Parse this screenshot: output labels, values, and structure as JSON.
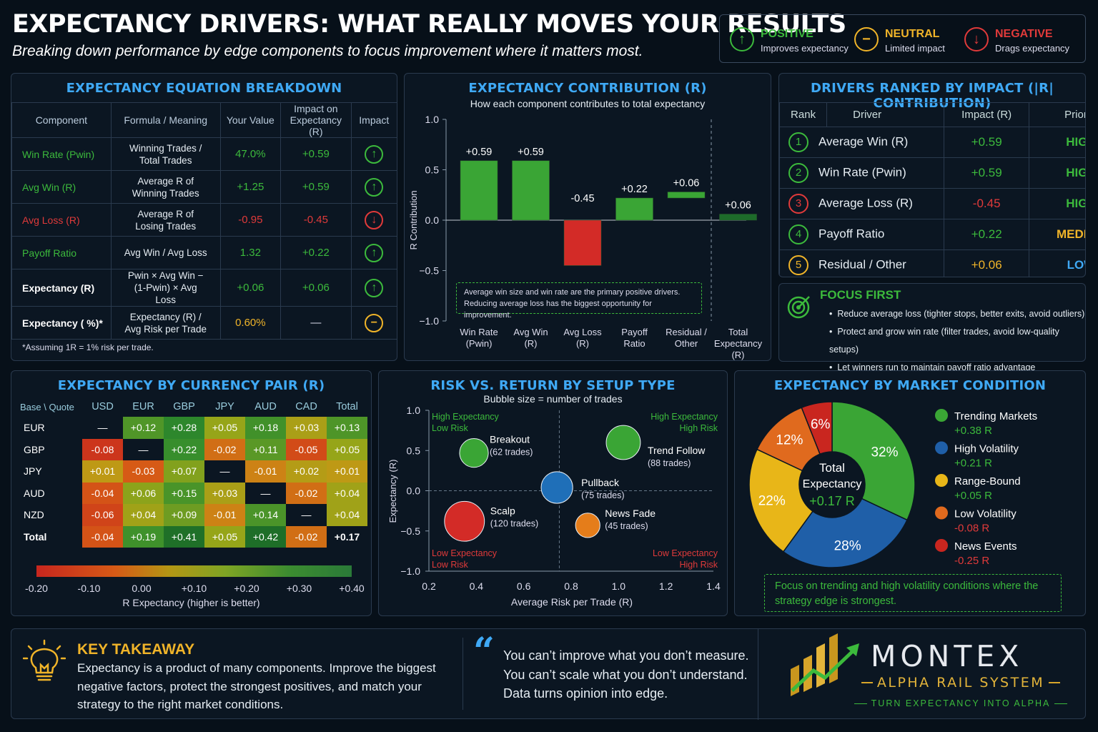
{
  "header": {
    "title": "EXPECTANCY DRIVERS: WHAT REALLY MOVES YOUR RESULTS",
    "subtitle": "Breaking down performance by edge components to focus improvement where it matters most."
  },
  "legend": [
    {
      "label": "POSITIVE",
      "desc": "Improves expectancy",
      "color": "#3cba3c",
      "icon": "up-arrow-icon",
      "glyph": "↑"
    },
    {
      "label": "NEUTRAL",
      "desc": "Limited impact",
      "color": "#f0b429",
      "icon": "minus-icon",
      "glyph": "−"
    },
    {
      "label": "NEGATIVE",
      "desc": "Drags expectancy",
      "color": "#e03a3a",
      "icon": "down-arrow-icon",
      "glyph": "↓"
    }
  ],
  "equation": {
    "title": "EXPECTANCY EQUATION BREAKDOWN",
    "headers": [
      "Component",
      "Formula / Meaning",
      "Your Value",
      "Impact on Expectancy (R)",
      "Impact"
    ],
    "rows": [
      {
        "component": "Win Rate (Pwin)",
        "formula": "Winning Trades / Total Trades",
        "value": "47.0%",
        "impact": "+0.59",
        "status": "positive"
      },
      {
        "component": "Avg Win (R)",
        "formula": "Average R of Winning Trades",
        "value": "+1.25",
        "impact": "+0.59",
        "status": "positive"
      },
      {
        "component": "Avg Loss (R)",
        "formula": "Average R of Losing Trades",
        "value": "-0.95",
        "impact": "-0.45",
        "status": "negative"
      },
      {
        "component": "Payoff Ratio",
        "formula": "Avg Win / Avg Loss",
        "value": "1.32",
        "impact": "+0.22",
        "status": "positive"
      },
      {
        "component": "Expectancy (R)",
        "formula": "Pwin × Avg Win − (1-Pwin) × Avg Loss",
        "value": "+0.06",
        "impact": "+0.06",
        "status": "positive"
      },
      {
        "component": "Expectancy ( %)*",
        "formula": "Expectancy (R) / Avg Risk per Trade",
        "value": "0.60%",
        "impact": "—",
        "status": "neutral"
      }
    ],
    "footnote": "*Assuming 1R = 1% risk per trade."
  },
  "contribution": {
    "title": "EXPECTANCY CONTRIBUTION (R)",
    "subtitle": "How each component contributes to total expectancy",
    "note": [
      "Average win size and win rate are the primary positive drivers.",
      "Reducing average loss has the biggest opportunity for improvement."
    ]
  },
  "ranked": {
    "title": "DRIVERS RANKED BY IMPACT (|R| CONTRIBUTION)",
    "headers": [
      "Rank",
      "Driver",
      "Impact (R)",
      "Priority"
    ],
    "rows": [
      {
        "rank": "1",
        "driver": "Average Win (R)",
        "impact": "+0.59",
        "priority": "HIGH",
        "color": "#3cba3c",
        "pcolor": "#3cba3c"
      },
      {
        "rank": "2",
        "driver": "Win Rate (Pwin)",
        "impact": "+0.59",
        "priority": "HIGH",
        "color": "#3cba3c",
        "pcolor": "#3cba3c"
      },
      {
        "rank": "3",
        "driver": "Average Loss (R)",
        "impact": "-0.45",
        "priority": "HIGH",
        "color": "#e03a3a",
        "pcolor": "#3cba3c"
      },
      {
        "rank": "4",
        "driver": "Payoff Ratio",
        "impact": "+0.22",
        "priority": "MEDIUM",
        "color": "#3cba3c",
        "pcolor": "#f0b429"
      },
      {
        "rank": "5",
        "driver": "Residual / Other",
        "impact": "+0.06",
        "priority": "LOW",
        "color": "#f0b429",
        "pcolor": "#3fa9f5"
      }
    ]
  },
  "focus": {
    "title": "FOCUS FIRST",
    "items": [
      "Reduce average loss (tighter stops, better exits, avoid outliers)",
      "Protect and grow win rate (filter trades, avoid low-quality setups)",
      "Let winners run to maintain payoff ratio advantage"
    ]
  },
  "heatmap": {
    "title": "EXPECTANCY BY CURRENCY PAIR (R)",
    "corner": "Base \\ Quote",
    "scale_label": "R Expectancy (higher is better)"
  },
  "risk": {
    "title": "RISK VS. RETURN BY SETUP TYPE",
    "subtitle": "Bubble size = number of trades",
    "quadrants": {
      "tl": [
        "High Expectancy",
        "Low Risk"
      ],
      "tr": [
        "High Expectancy",
        "High Risk"
      ],
      "bl": [
        "Low Expectancy",
        "Low Risk"
      ],
      "br": [
        "Low Expectancy",
        "High Risk"
      ]
    }
  },
  "market": {
    "title": "EXPECTANCY BY MARKET CONDITION",
    "center": [
      "Total",
      "Expectancy",
      "+0.17 R"
    ],
    "note": "Focus on trending and high volatility conditions where the strategy edge is strongest."
  },
  "footer": {
    "takeaway_title": "KEY TAKEAWAY",
    "takeaway_text": "Expectancy is a product of many components. Improve the biggest negative factors, protect the strongest positives, and match your strategy to the right market conditions.",
    "quote": [
      "You can’t improve what you don’t measure.",
      "You can’t scale what you don’t understand.",
      "Data turns opinion into edge."
    ],
    "brand": "MONTEX",
    "brand_sub": "ALPHA RAIL SYSTEM",
    "brand_tag": "TURN EXPECTANCY INTO ALPHA"
  },
  "chart_data": [
    {
      "type": "bar",
      "title": "EXPECTANCY CONTRIBUTION (R)",
      "ylabel": "R Contribution",
      "ylim": [
        -1.0,
        1.0
      ],
      "yticks": [
        "1.0",
        "0.5",
        "0.0",
        "−0.5",
        "−1.0"
      ],
      "categories": [
        "Win Rate (Pwin)",
        "Avg Win (R)",
        "Avg Loss (R)",
        "Payoff Ratio",
        "Residual / Other",
        "Total Expectancy (R)"
      ],
      "values": [
        0.59,
        0.59,
        -0.45,
        0.22,
        0.06,
        0.06
      ],
      "labels": [
        "+0.59",
        "+0.59",
        "-0.45",
        "+0.22",
        "+0.06",
        "+0.06"
      ],
      "colors": [
        "#3aa535",
        "#3aa535",
        "#d32b27",
        "#3aa535",
        "#3aa535",
        "#1d6b2a"
      ]
    },
    {
      "type": "heatmap",
      "title": "EXPECTANCY BY CURRENCY PAIR (R)",
      "columns": [
        "USD",
        "EUR",
        "GBP",
        "JPY",
        "AUD",
        "CAD",
        "Total"
      ],
      "rows": [
        "EUR",
        "GBP",
        "JPY",
        "AUD",
        "NZD",
        "Total"
      ],
      "values": [
        [
          null,
          0.12,
          0.28,
          0.05,
          0.18,
          0.03,
          0.13
        ],
        [
          -0.08,
          null,
          0.22,
          -0.02,
          0.11,
          -0.05,
          0.05
        ],
        [
          0.01,
          -0.03,
          0.07,
          null,
          -0.01,
          0.02,
          0.01
        ],
        [
          -0.04,
          0.06,
          0.15,
          0.03,
          null,
          -0.02,
          0.04
        ],
        [
          -0.06,
          0.04,
          0.09,
          -0.01,
          0.14,
          null,
          0.04
        ],
        [
          -0.04,
          0.19,
          0.41,
          0.05,
          0.42,
          -0.02,
          0.17
        ]
      ],
      "scale_ticks": [
        "-0.20",
        "-0.10",
        "0.00",
        "+0.10",
        "+0.20",
        "+0.30",
        "+0.40"
      ],
      "scale_range": [
        -0.2,
        0.4
      ]
    },
    {
      "type": "scatter",
      "title": "RISK VS. RETURN BY SETUP TYPE",
      "xlabel": "Average Risk per Trade (R)",
      "ylabel": "Expectancy (R)",
      "xlim": [
        0.2,
        1.4
      ],
      "ylim": [
        -1.0,
        1.0
      ],
      "xticks": [
        "0.2",
        "0.4",
        "0.6",
        "0.8",
        "1.0",
        "1.2",
        "1.4"
      ],
      "yticks": [
        "1.0",
        "0.5",
        "0.0",
        "−0.5",
        "−1.0"
      ],
      "points": [
        {
          "name": "Breakout",
          "trades": 62,
          "trades_label": "(62 trades)",
          "x": 0.39,
          "y": 0.47,
          "color": "#3aa535"
        },
        {
          "name": "Trend Follow",
          "trades": 88,
          "trades_label": "(88 trades)",
          "x": 1.02,
          "y": 0.6,
          "color": "#3aa535"
        },
        {
          "name": "Pullback",
          "trades": 75,
          "trades_label": "(75 trades)",
          "x": 0.74,
          "y": 0.04,
          "color": "#1f6fb8"
        },
        {
          "name": "Scalp",
          "trades": 120,
          "trades_label": "(120 trades)",
          "x": 0.35,
          "y": -0.38,
          "color": "#d32b27"
        },
        {
          "name": "News Fade",
          "trades": 45,
          "trades_label": "(45 trades)",
          "x": 0.87,
          "y": -0.43,
          "color": "#e57d1a"
        }
      ]
    },
    {
      "type": "pie",
      "title": "EXPECTANCY BY MARKET CONDITION",
      "slices": [
        {
          "name": "Trending Markets",
          "value_label": "+0.38 R",
          "percent": 32,
          "color": "#3aa535",
          "vcolor": "#3cba3c"
        },
        {
          "name": "High Volatility",
          "value_label": "+0.21 R",
          "percent": 28,
          "color": "#1f5fa8",
          "vcolor": "#3cba3c"
        },
        {
          "name": "Range-Bound",
          "value_label": "+0.05 R",
          "percent": 22,
          "color": "#e8b618",
          "vcolor": "#3cba3c"
        },
        {
          "name": "Low Volatility",
          "value_label": "-0.08 R",
          "percent": 12,
          "color": "#e06a1e",
          "vcolor": "#e03a3a"
        },
        {
          "name": "News Events",
          "value_label": "-0.25 R",
          "percent": 6,
          "color": "#c9261f",
          "vcolor": "#e03a3a"
        }
      ]
    }
  ]
}
